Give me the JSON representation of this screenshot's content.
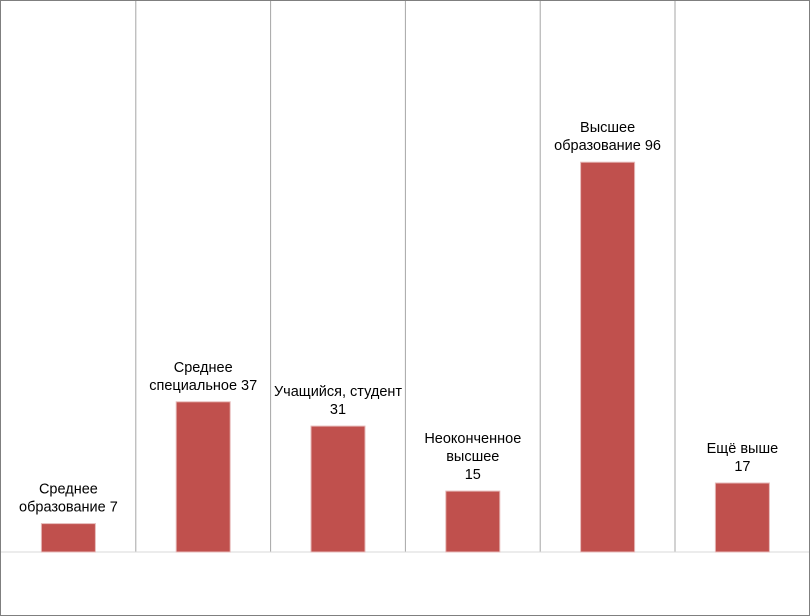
{
  "chart_data": {
    "type": "bar",
    "categories": [
      "Среднее образование",
      "Среднее специальное",
      "Учащийся, студент",
      "Неоконченное высшее",
      "Высшее образование",
      "Ещё выше"
    ],
    "values": [
      7,
      37,
      31,
      15,
      96,
      17
    ],
    "data_labels": [
      [
        "Среднее",
        "образование 7"
      ],
      [
        "Среднее",
        "специальное 37"
      ],
      [
        "Учащийся, студент",
        "31"
      ],
      [
        "Неоконченное",
        "высшее",
        "15"
      ],
      [
        "Высшее",
        "образование 96"
      ],
      [
        "Ещё выше",
        "17"
      ]
    ],
    "ylim": [
      0,
      120
    ],
    "grid": "vertical separators between categories",
    "legend": "none",
    "bar_color": "#c0504d",
    "gridline_color": "#a6a6a6"
  }
}
